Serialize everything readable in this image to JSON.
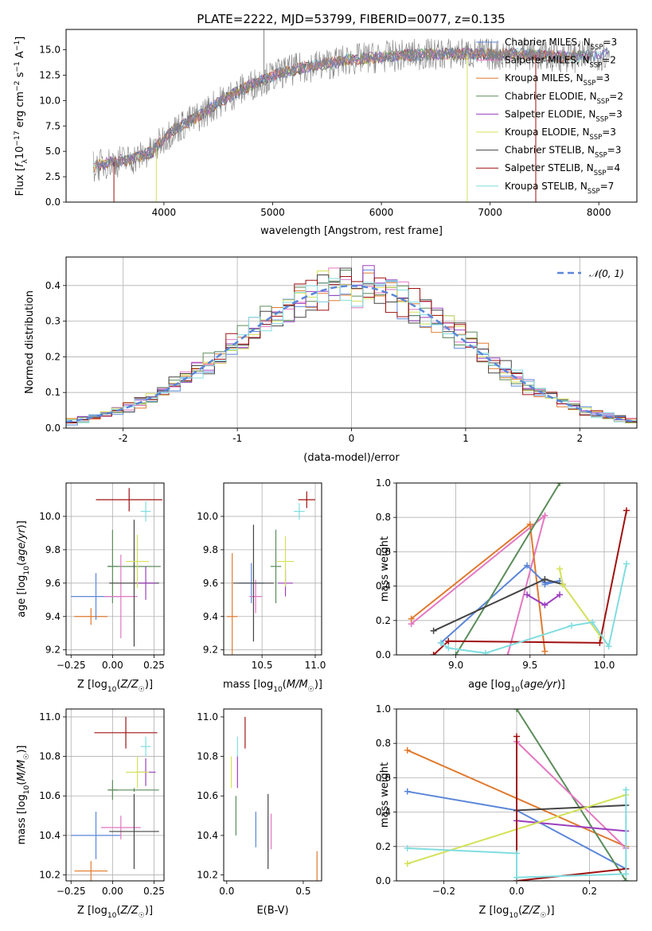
{
  "figure": {
    "title": "PLATE=2222, MJD=53799, FIBERID=0077, z=0.135"
  },
  "series_colors": {
    "Chabrier MILES": "#6a7a8a",
    "Salpeter MILES": "#e377c2",
    "Kroupa MILES": "#e07a2e",
    "Chabrier ELODIE": "#5b8c5a",
    "Salpeter ELODIE": "#9b3fbf",
    "Kroupa ELODIE": "#d4e157",
    "Chabrier STELIB": "#444444",
    "Salpeter STELIB": "#a01010",
    "Kroupa STELIB": "#80dde0",
    "Salpeter MILES pink": "#e377c2",
    "Chabrier MILES blue": "#5b86d9"
  },
  "chart_data": [
    {
      "id": "spectrum",
      "type": "line",
      "xlabel": "wavelength [Angstrom, rest frame]",
      "ylabel": "Flux [f_λ10^-17 erg cm^-2 s^-1 A^-1]",
      "xlim": [
        3100,
        8350
      ],
      "ylim": [
        0,
        17
      ],
      "xticks": [
        4000,
        5000,
        6000,
        7000,
        8000
      ],
      "yticks": [
        0.0,
        2.5,
        5.0,
        7.5,
        10.0,
        12.5,
        15.0
      ],
      "ytick_labels": [
        "0.0",
        "2.5",
        "5.0",
        "7.5",
        "10.0",
        "12.5",
        "15.0"
      ],
      "legend_placement": "right",
      "legend": [
        {
          "label": "Chabrier MILES, N",
          "sub": "SSP",
          "suffix": "=3",
          "color": "#5b86d9"
        },
        {
          "label": "Salpeter MILES, N",
          "sub": "SSP",
          "suffix": "=2",
          "color": "#e377c2"
        },
        {
          "label": "Kroupa MILES, N",
          "sub": "SSP",
          "suffix": "=3",
          "color": "#e07a2e"
        },
        {
          "label": "Chabrier ELODIE, N",
          "sub": "SSP",
          "suffix": "=2",
          "color": "#5b8c5a"
        },
        {
          "label": "Salpeter ELODIE, N",
          "sub": "SSP",
          "suffix": "=3",
          "color": "#9b3fbf"
        },
        {
          "label": "Kroupa ELODIE, N",
          "sub": "SSP",
          "suffix": "=3",
          "color": "#d4e157"
        },
        {
          "label": "Chabrier STELIB, N",
          "sub": "SSP",
          "suffix": "=3",
          "color": "#444444"
        },
        {
          "label": "Salpeter STELIB, N",
          "sub": "SSP",
          "suffix": "=4",
          "color": "#a01010"
        },
        {
          "label": "Kroupa STELIB, N",
          "sub": "SSP",
          "suffix": "=7",
          "color": "#80dde0"
        }
      ],
      "continuum": {
        "x": [
          3350,
          3500,
          3700,
          3900,
          4000,
          4100,
          4300,
          4500,
          4700,
          4900,
          5100,
          5300,
          5500,
          5700,
          6000,
          6300,
          6600,
          6900,
          7100,
          7300,
          7500,
          7800,
          8100
        ],
        "y": [
          3.5,
          3.9,
          4.2,
          5.0,
          6.3,
          7.2,
          8.3,
          9.8,
          11.0,
          12.0,
          12.8,
          13.3,
          13.6,
          14.0,
          14.3,
          14.5,
          14.6,
          14.6,
          14.5,
          14.6,
          14.4,
          14.3,
          14.6
        ]
      }
    },
    {
      "id": "residuals",
      "type": "histogram",
      "xlabel": "(data-model)/error",
      "ylabel": "Normed distribution",
      "xlim": [
        -2.5,
        2.5
      ],
      "ylim": [
        0,
        0.48
      ],
      "xticks": [
        -2,
        -1,
        0,
        1,
        2
      ],
      "yticks": [
        0.0,
        0.1,
        0.2,
        0.3,
        0.4
      ],
      "ytick_labels": [
        "0.0",
        "0.1",
        "0.2",
        "0.3",
        "0.4"
      ],
      "grid": true,
      "legend_placement": "top-right",
      "legend_label": "𝒩(0, 1)",
      "bin_width": 0.1
    },
    {
      "id": "age_vs_Z",
      "type": "scatter",
      "xlabel": "Z [log10(Z/Z☉)]",
      "ylabel": "age  [log10(age/yr)]",
      "xlim": [
        -0.28,
        0.31
      ],
      "ylim": [
        9.17,
        10.2
      ],
      "xticks": [
        -0.25,
        0.0,
        0.25
      ],
      "xtick_labels": [
        "−0.25",
        "0.00",
        "0.25"
      ],
      "yticks": [
        9.2,
        9.4,
        9.6,
        9.8,
        10.0
      ],
      "ytick_labels": [
        "9.2",
        "9.4",
        "9.6",
        "9.8",
        "10.0"
      ],
      "grid": true,
      "points": [
        {
          "x": 0.1,
          "y": 10.1,
          "xe": 0.2,
          "ye": 0.07,
          "color": "#a01010"
        },
        {
          "x": 0.2,
          "y": 10.03,
          "xe": 0.03,
          "ye": 0.06,
          "color": "#80dde0"
        },
        {
          "x": -0.13,
          "y": 9.4,
          "xe": 0.1,
          "ye": 0.05,
          "color": "#e07a2e"
        },
        {
          "x": -0.1,
          "y": 9.52,
          "xe": 0.15,
          "ye": 0.14,
          "color": "#5b86d9"
        },
        {
          "x": 0.0,
          "y": 9.7,
          "xe": 0.03,
          "ye": 0.22,
          "color": "#5b8c5a"
        },
        {
          "x": 0.13,
          "y": 9.7,
          "xe": 0.16,
          "ye": 0.01,
          "color": "#5b8c5a"
        },
        {
          "x": 0.05,
          "y": 9.52,
          "xe": 0.1,
          "ye": 0.25,
          "color": "#e377c2"
        },
        {
          "x": 0.13,
          "y": 9.6,
          "xe": 0.15,
          "ye": 0.38,
          "color": "#444444"
        },
        {
          "x": 0.2,
          "y": 9.6,
          "xe": 0.06,
          "ye": 0.1,
          "color": "#9b3fbf"
        },
        {
          "x": 0.15,
          "y": 9.73,
          "xe": 0.07,
          "ye": 0.16,
          "color": "#d4e157"
        }
      ]
    },
    {
      "id": "age_vs_mass",
      "type": "scatter",
      "xlabel": "mass [log10(M/M☉)]",
      "xlim": [
        10.14,
        11.06
      ],
      "ylim": [
        9.17,
        10.2
      ],
      "xticks": [
        10.5,
        11.0
      ],
      "xtick_labels": [
        "10.5",
        "11.0"
      ],
      "yticks": [
        9.2,
        9.4,
        9.6,
        9.8,
        10.0
      ],
      "ytick_labels": [
        "9.2",
        "9.4",
        "9.6",
        "9.8",
        "10.0"
      ],
      "grid": true,
      "points": [
        {
          "x": 10.92,
          "y": 10.1,
          "xe": 0.08,
          "ye": 0.05,
          "color": "#a01010"
        },
        {
          "x": 10.85,
          "y": 10.03,
          "xe": 0.05,
          "ye": 0.05,
          "color": "#80dde0"
        },
        {
          "x": 10.22,
          "y": 9.4,
          "xe": 0.05,
          "ye": 0.38,
          "color": "#e07a2e"
        },
        {
          "x": 10.4,
          "y": 9.6,
          "xe": 0.12,
          "ye": 0.12,
          "color": "#5b86d9"
        },
        {
          "x": 10.63,
          "y": 9.7,
          "xe": 0.05,
          "ye": 0.22,
          "color": "#5b8c5a"
        },
        {
          "x": 10.44,
          "y": 9.52,
          "xe": 0.06,
          "ye": 0.1,
          "color": "#e377c2"
        },
        {
          "x": 10.42,
          "y": 9.6,
          "xe": 0.19,
          "ye": 0.35,
          "color": "#444444"
        },
        {
          "x": 10.72,
          "y": 9.6,
          "xe": 0.07,
          "ye": 0.08,
          "color": "#9b3fbf"
        },
        {
          "x": 10.72,
          "y": 9.73,
          "xe": 0.08,
          "ye": 0.15,
          "color": "#d4e157"
        }
      ]
    },
    {
      "id": "massweight_vs_age",
      "type": "line",
      "xlabel": "age  [log10(age/yr)]",
      "ylabel": "mass weight",
      "xlim": [
        8.6,
        10.22
      ],
      "ylim": [
        0,
        1
      ],
      "xticks": [
        9.0,
        9.5,
        10.0
      ],
      "xtick_labels": [
        "9.0",
        "9.5",
        "10.0"
      ],
      "yticks": [
        0.0,
        0.2,
        0.4,
        0.6,
        0.8,
        1.0
      ],
      "ytick_labels": [
        "0.0",
        "0.2",
        "0.4",
        "0.6",
        "0.8",
        "1.0"
      ],
      "grid": true,
      "series": [
        {
          "color": "#e377c2",
          "x": [
            8.7,
            9.6,
            9.35
          ],
          "y": [
            0.18,
            0.81,
            0.0
          ]
        },
        {
          "color": "#e07a2e",
          "x": [
            8.7,
            9.5,
            9.6
          ],
          "y": [
            0.21,
            0.76,
            0.02
          ]
        },
        {
          "color": "#5b86d9",
          "x": [
            8.9,
            9.48,
            9.6,
            9.7,
            9.6
          ],
          "y": [
            0.07,
            0.52,
            0.42,
            0.43,
            0.41
          ]
        },
        {
          "color": "#5b8c5a",
          "x": [
            9.0,
            9.7
          ],
          "y": [
            0.0,
            1.0
          ]
        },
        {
          "color": "#444444",
          "x": [
            8.85,
            9.6,
            9.72
          ],
          "y": [
            0.14,
            0.44,
            0.41
          ]
        },
        {
          "color": "#9b3fbf",
          "x": [
            9.48,
            9.6,
            9.7
          ],
          "y": [
            0.35,
            0.29,
            0.35
          ]
        },
        {
          "color": "#d4e157",
          "x": [
            9.7,
            9.72,
            9.98
          ],
          "y": [
            0.5,
            0.41,
            0.1
          ]
        },
        {
          "color": "#a01010",
          "x": [
            8.85,
            8.95,
            9.97,
            10.15
          ],
          "y": [
            0.0,
            0.08,
            0.07,
            0.84
          ]
        },
        {
          "color": "#80dde0",
          "x": [
            8.9,
            8.95,
            9.2,
            9.78,
            9.92,
            10.03,
            10.15
          ],
          "y": [
            0.07,
            0.04,
            0.01,
            0.17,
            0.19,
            0.05,
            0.53
          ]
        }
      ]
    },
    {
      "id": "mass_vs_Z",
      "type": "scatter",
      "xlabel": "Z [log10(Z/Z☉)]",
      "ylabel": "mass [log10(M/M☉)]",
      "xlim": [
        -0.28,
        0.31
      ],
      "ylim": [
        10.17,
        11.04
      ],
      "xticks": [
        -0.25,
        0.0,
        0.25
      ],
      "xtick_labels": [
        "−0.25",
        "0.00",
        "0.25"
      ],
      "yticks": [
        10.2,
        10.4,
        10.6,
        10.8,
        11.0
      ],
      "ytick_labels": [
        "10.2",
        "10.4",
        "10.6",
        "10.8",
        "11.0"
      ],
      "grid": true,
      "points": [
        {
          "x": 0.08,
          "y": 10.92,
          "xe": 0.19,
          "ye": 0.08,
          "color": "#a01010"
        },
        {
          "x": 0.2,
          "y": 10.85,
          "xe": 0.03,
          "ye": 0.05,
          "color": "#80dde0"
        },
        {
          "x": -0.13,
          "y": 10.22,
          "xe": 0.1,
          "ye": 0.05,
          "color": "#e07a2e"
        },
        {
          "x": -0.1,
          "y": 10.4,
          "xe": 0.15,
          "ye": 0.12,
          "color": "#5b86d9"
        },
        {
          "x": 0.0,
          "y": 10.63,
          "xe": 0.03,
          "ye": 0.05,
          "color": "#5b8c5a"
        },
        {
          "x": 0.13,
          "y": 10.63,
          "xe": 0.15,
          "ye": 0.01,
          "color": "#5b8c5a"
        },
        {
          "x": 0.05,
          "y": 10.44,
          "xe": 0.12,
          "ye": 0.06,
          "color": "#e377c2"
        },
        {
          "x": 0.13,
          "y": 10.42,
          "xe": 0.15,
          "ye": 0.19,
          "color": "#444444"
        },
        {
          "x": 0.2,
          "y": 10.72,
          "xe": 0.06,
          "ye": 0.07,
          "color": "#9b3fbf"
        },
        {
          "x": 0.15,
          "y": 10.72,
          "xe": 0.07,
          "ye": 0.08,
          "color": "#d4e157"
        }
      ]
    },
    {
      "id": "mass_vs_ebv",
      "type": "scatter",
      "xlabel": "E(B-V)",
      "xlim": [
        -0.02,
        0.62
      ],
      "ylim": [
        10.17,
        11.04
      ],
      "xticks": [
        0.0,
        0.5
      ],
      "xtick_labels": [
        "0.0",
        "0.5"
      ],
      "yticks": [
        10.2,
        10.4,
        10.6,
        10.8,
        11.0
      ],
      "ytick_labels": [
        "10.2",
        "10.4",
        "10.6",
        "10.8",
        "11.0"
      ],
      "grid": false,
      "points": [
        {
          "x": 0.12,
          "y": 10.92,
          "ye": 0.08,
          "color": "#a01010"
        },
        {
          "x": 0.07,
          "y": 10.85,
          "ye": 0.05,
          "color": "#80dde0"
        },
        {
          "x": 0.59,
          "y": 10.22,
          "ye": 0.1,
          "color": "#e07a2e"
        },
        {
          "x": 0.19,
          "y": 10.43,
          "ye": 0.09,
          "color": "#5b86d9"
        },
        {
          "x": 0.06,
          "y": 10.5,
          "ye": 0.1,
          "color": "#5b8c5a"
        },
        {
          "x": 0.29,
          "y": 10.42,
          "ye": 0.09,
          "color": "#e377c2"
        },
        {
          "x": 0.27,
          "y": 10.42,
          "ye": 0.19,
          "color": "#444444"
        },
        {
          "x": 0.07,
          "y": 10.72,
          "ye": 0.08,
          "color": "#9b3fbf"
        },
        {
          "x": 0.03,
          "y": 10.72,
          "ye": 0.08,
          "color": "#d4e157"
        }
      ]
    },
    {
      "id": "massweight_vs_Z",
      "type": "line",
      "xlabel": "Z [log10(Z/Z☉)]",
      "ylabel": "mass weight",
      "xlim": [
        -0.33,
        0.33
      ],
      "ylim": [
        0,
        1
      ],
      "xticks": [
        -0.2,
        0.0,
        0.2
      ],
      "xtick_labels": [
        "−0.2",
        "0.0",
        "0.2"
      ],
      "yticks": [
        0.0,
        0.2,
        0.4,
        0.6,
        0.8,
        1.0
      ],
      "ytick_labels": [
        "0.0",
        "0.2",
        "0.4",
        "0.6",
        "0.8",
        "1.0"
      ],
      "grid": true,
      "series": [
        {
          "color": "#e07a2e",
          "x": [
            -0.3,
            0.3
          ],
          "y": [
            0.76,
            0.2
          ]
        },
        {
          "color": "#5b86d9",
          "x": [
            -0.3,
            0.0,
            0.3
          ],
          "y": [
            0.52,
            0.41,
            0.07
          ]
        },
        {
          "color": "#5b8c5a",
          "x": [
            0.0,
            0.3
          ],
          "y": [
            1.0,
            0.0
          ]
        },
        {
          "color": "#e377c2",
          "x": [
            0.0,
            0.3
          ],
          "y": [
            0.81,
            0.19
          ]
        },
        {
          "color": "#444444",
          "x": [
            0.0,
            0.3
          ],
          "y": [
            0.41,
            0.44
          ]
        },
        {
          "color": "#9b3fbf",
          "x": [
            0.0,
            0.3
          ],
          "y": [
            0.35,
            0.29
          ]
        },
        {
          "color": "#d4e157",
          "x": [
            -0.3,
            0.3
          ],
          "y": [
            0.1,
            0.5
          ]
        },
        {
          "color": "#a01010",
          "x": [
            0.0,
            0.0,
            0.3
          ],
          "y": [
            0.84,
            0.0,
            0.07
          ]
        },
        {
          "color": "#80dde0",
          "x": [
            -0.3,
            0.0,
            0.0,
            0.3,
            0.3
          ],
          "y": [
            0.19,
            0.16,
            0.02,
            0.04,
            0.53
          ]
        }
      ]
    }
  ]
}
